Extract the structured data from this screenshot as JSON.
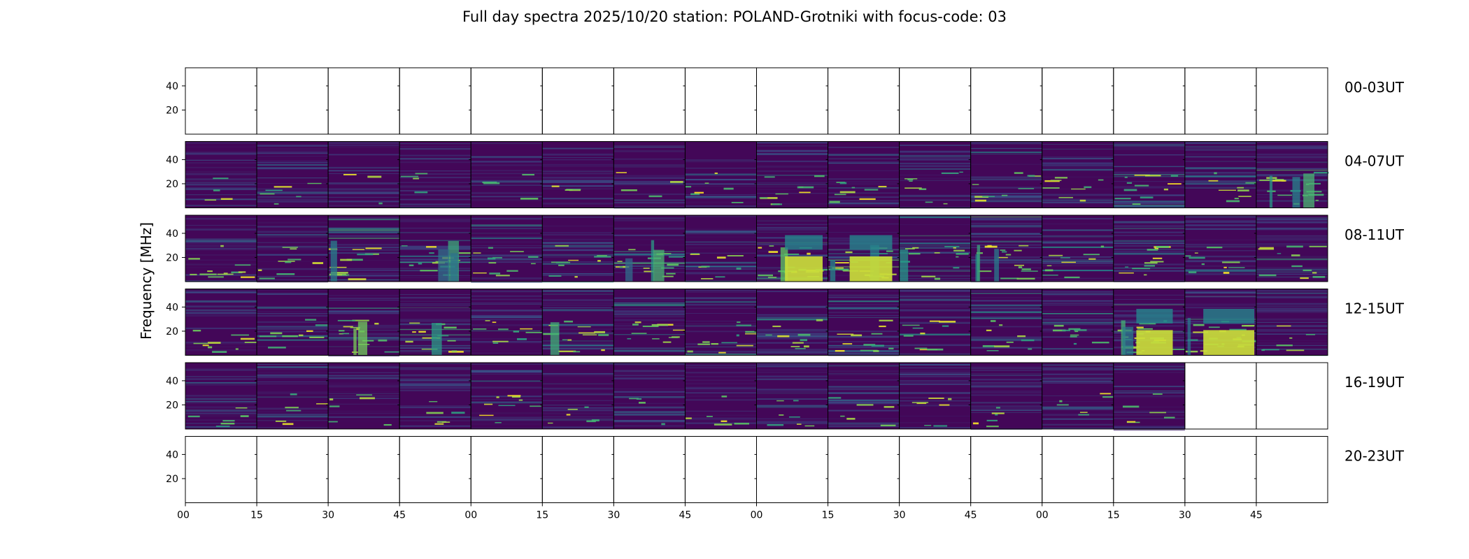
{
  "chart_data": {
    "type": "heatmap",
    "title": "Full day spectra 2025/10/20 station: POLAND-Grotniki with focus-code: 03",
    "ylabel": "Frequency [MHz]",
    "xlabel": "",
    "y_ticks": [
      20,
      40
    ],
    "x_ticks": [
      "00",
      "15",
      "30",
      "45",
      "00",
      "15",
      "30",
      "45",
      "00",
      "15",
      "30",
      "45",
      "00",
      "15",
      "30",
      "45"
    ],
    "colormap": [
      "#440154",
      "#3b528b",
      "#21918c",
      "#5ec962",
      "#fde725"
    ],
    "panels_per_row": 16,
    "panel_minutes": 15,
    "rows": [
      {
        "label": "00-03UT",
        "panels": [
          0,
          0,
          0,
          0,
          0,
          0,
          0,
          0,
          0,
          0,
          0,
          0,
          0,
          0,
          0,
          0
        ]
      },
      {
        "label": "04-07UT",
        "panels": [
          0.15,
          0.2,
          0.1,
          0.15,
          0.15,
          0.15,
          0.15,
          0.25,
          0.35,
          0.3,
          0.3,
          0.3,
          0.3,
          0.4,
          0.3,
          0.55
        ]
      },
      {
        "label": "08-11UT",
        "panels": [
          0.4,
          0.3,
          0.45,
          0.45,
          0.4,
          0.35,
          0.5,
          0.3,
          0.6,
          0.65,
          0.45,
          0.55,
          0.35,
          0.4,
          0.35,
          0.4
        ]
      },
      {
        "label": "12-15UT",
        "panels": [
          0.35,
          0.3,
          0.5,
          0.45,
          0.35,
          0.45,
          0.4,
          0.4,
          0.35,
          0.4,
          0.35,
          0.35,
          0.35,
          0.75,
          0.7,
          0.25
        ]
      },
      {
        "label": "16-19UT",
        "panels": [
          0.2,
          0.2,
          0.2,
          0.2,
          0.3,
          0.2,
          0.15,
          0.2,
          0.25,
          0.2,
          0.25,
          0.2,
          0.2,
          0.2,
          0,
          0
        ]
      },
      {
        "label": "20-23UT",
        "panels": [
          0,
          0,
          0,
          0,
          0,
          0,
          0,
          0,
          0,
          0,
          0,
          0,
          0,
          0,
          0,
          0
        ]
      }
    ]
  }
}
